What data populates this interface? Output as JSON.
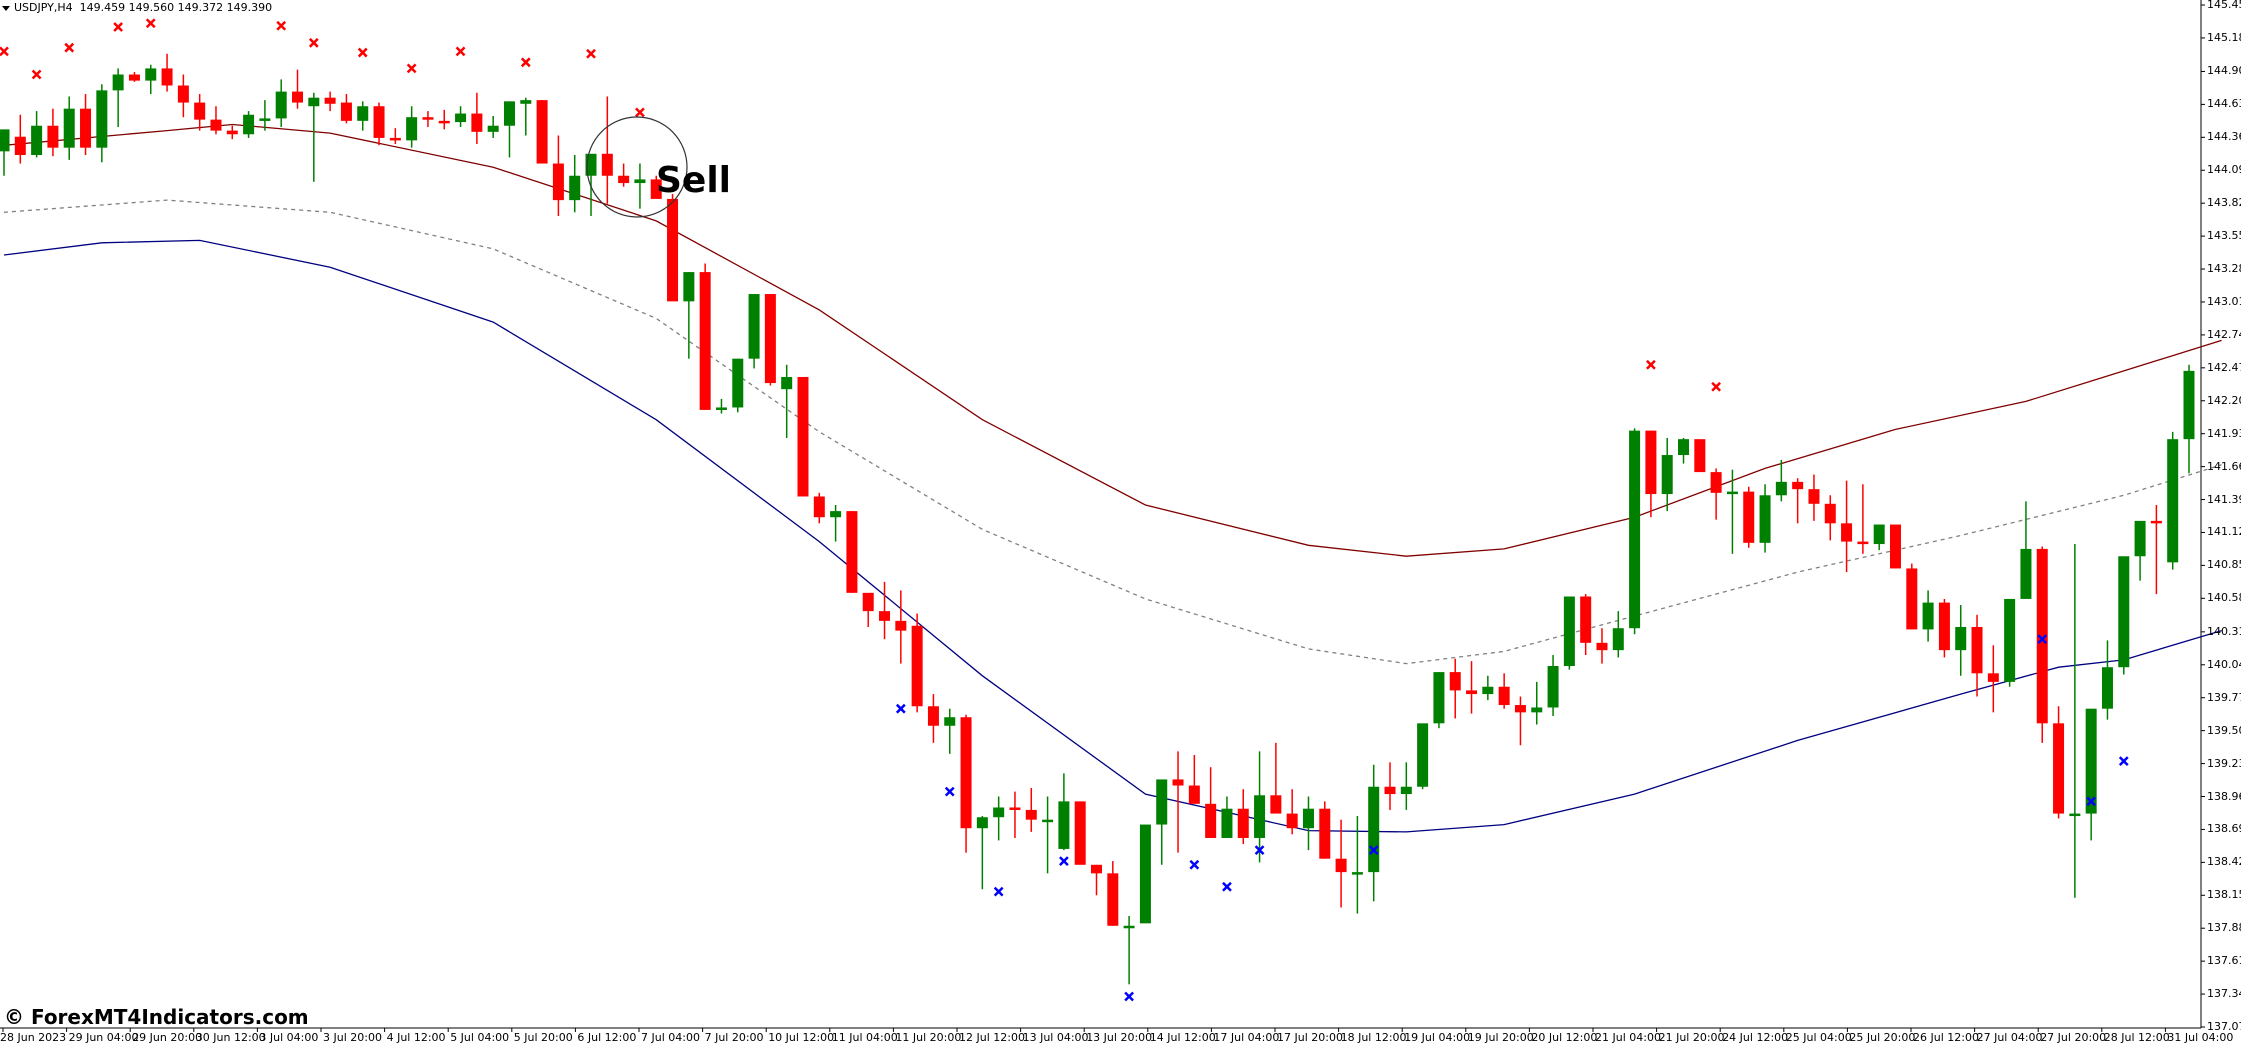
{
  "header": {
    "symbol": "USDJPY,H4",
    "ohlc": "149.459 149.560 149.372 149.390"
  },
  "watermark": "© ForexMT4Indicators.com",
  "annotation": {
    "label": "Sell"
  },
  "colors": {
    "bull": "#008000",
    "bear": "#ff0000",
    "upper_band": "#800000",
    "middle_band": "#808080",
    "lower_band": "#000080",
    "sell_marker": "#ff0000",
    "buy_marker": "#0000ff",
    "axis": "#000000"
  },
  "chart_data": {
    "type": "candlestick",
    "title": "USDJPY,H4",
    "price_axis": {
      "ticks": [
        "145.450",
        "145.180",
        "144.905",
        "144.635",
        "144.365",
        "144.095",
        "143.825",
        "143.555",
        "143.285",
        "143.015",
        "142.745",
        "142.475",
        "142.205",
        "141.935",
        "141.665",
        "141.395",
        "141.125",
        "140.855",
        "140.585",
        "140.310",
        "140.040",
        "139.770",
        "139.500",
        "139.230",
        "138.960",
        "138.690",
        "138.420",
        "138.150",
        "137.880",
        "137.610",
        "137.340",
        "137.070"
      ],
      "range": [
        137.07,
        145.45
      ]
    },
    "time_axis": {
      "ticks": [
        "28 Jun 2023",
        "29 Jun 04:00",
        "29 Jun 20:00",
        "30 Jun 12:00",
        "3 Jul 04:00",
        "3 Jul 20:00",
        "4 Jul 12:00",
        "5 Jul 04:00",
        "5 Jul 20:00",
        "6 Jul 12:00",
        "7 Jul 04:00",
        "7 Jul 20:00",
        "10 Jul 12:00",
        "11 Jul 04:00",
        "11 Jul 20:00",
        "12 Jul 12:00",
        "13 Jul 04:00",
        "13 Jul 20:00",
        "14 Jul 12:00",
        "17 Jul 04:00",
        "17 Jul 20:00",
        "18 Jul 12:00",
        "19 Jul 04:00",
        "19 Jul 20:00",
        "20 Jul 12:00",
        "21 Jul 04:00",
        "21 Jul 20:00",
        "24 Jul 12:00",
        "25 Jul 04:00",
        "25 Jul 20:00",
        "26 Jul 12:00",
        "27 Jul 04:00",
        "27 Jul 20:00",
        "28 Jul 12:00",
        "31 Jul 04:00"
      ]
    },
    "candles_ohlc": [
      [
        144.25,
        144.43,
        144.05,
        144.43
      ],
      [
        144.37,
        144.55,
        144.15,
        144.22
      ],
      [
        144.22,
        144.58,
        144.2,
        144.46
      ],
      [
        144.46,
        144.6,
        144.21,
        144.28
      ],
      [
        144.28,
        144.7,
        144.18,
        144.6
      ],
      [
        144.6,
        144.72,
        144.22,
        144.28
      ],
      [
        144.28,
        144.8,
        144.16,
        144.75
      ],
      [
        144.75,
        144.93,
        144.45,
        144.88
      ],
      [
        144.88,
        144.9,
        144.82,
        144.83
      ],
      [
        144.83,
        144.96,
        144.72,
        144.93
      ],
      [
        144.93,
        145.05,
        144.74,
        144.79
      ],
      [
        144.79,
        144.88,
        144.53,
        144.65
      ],
      [
        144.65,
        144.72,
        144.42,
        144.51
      ],
      [
        144.51,
        144.62,
        144.39,
        144.42
      ],
      [
        144.42,
        144.46,
        144.35,
        144.39
      ],
      [
        144.39,
        144.58,
        144.36,
        144.55
      ],
      [
        144.5,
        144.67,
        144.42,
        144.52
      ],
      [
        144.52,
        144.84,
        144.45,
        144.74
      ],
      [
        144.74,
        144.92,
        144.6,
        144.65
      ],
      [
        144.62,
        144.73,
        144.0,
        144.69
      ],
      [
        144.69,
        144.74,
        144.58,
        144.64
      ],
      [
        144.65,
        144.72,
        144.48,
        144.5
      ],
      [
        144.5,
        144.66,
        144.42,
        144.62
      ],
      [
        144.62,
        144.65,
        144.3,
        144.36
      ],
      [
        144.36,
        144.44,
        144.31,
        144.34
      ],
      [
        144.34,
        144.62,
        144.28,
        144.53
      ],
      [
        144.53,
        144.58,
        144.45,
        144.51
      ],
      [
        144.5,
        144.59,
        144.43,
        144.49
      ],
      [
        144.49,
        144.62,
        144.45,
        144.56
      ],
      [
        144.56,
        144.73,
        144.31,
        144.41
      ],
      [
        144.41,
        144.54,
        144.36,
        144.46
      ],
      [
        144.46,
        144.66,
        144.2,
        144.66
      ],
      [
        144.64,
        144.69,
        144.38,
        144.67
      ],
      [
        144.67,
        144.67,
        144.15,
        144.15
      ],
      [
        144.15,
        144.38,
        143.72,
        143.85
      ],
      [
        143.85,
        144.22,
        143.75,
        144.05
      ],
      [
        144.05,
        144.16,
        143.72,
        144.23
      ],
      [
        144.23,
        144.7,
        143.82,
        144.05
      ],
      [
        144.05,
        144.15,
        143.96,
        143.99
      ],
      [
        143.99,
        144.15,
        143.78,
        144.02
      ],
      [
        144.02,
        144.05,
        143.87,
        143.86
      ],
      [
        143.86,
        143.9,
        143.38,
        143.02
      ],
      [
        143.02,
        143.26,
        142.55,
        143.26
      ],
      [
        143.26,
        143.33,
        142.13,
        142.13
      ],
      [
        142.13,
        142.22,
        142.1,
        142.15
      ],
      [
        142.15,
        142.55,
        142.11,
        142.55
      ],
      [
        142.55,
        143.08,
        142.47,
        143.08
      ],
      [
        143.08,
        143.08,
        142.33,
        142.35
      ],
      [
        142.3,
        142.5,
        141.9,
        142.4
      ],
      [
        142.4,
        142.4,
        141.42,
        141.42
      ],
      [
        141.42,
        141.45,
        141.2,
        141.25
      ],
      [
        141.25,
        141.35,
        141.05,
        141.3
      ],
      [
        141.3,
        141.3,
        140.63,
        140.63
      ],
      [
        140.63,
        140.62,
        140.35,
        140.48
      ],
      [
        140.48,
        140.72,
        140.25,
        140.4
      ],
      [
        140.4,
        140.65,
        140.05,
        140.32
      ],
      [
        140.36,
        140.46,
        139.65,
        139.7
      ],
      [
        139.7,
        139.8,
        139.4,
        139.54
      ],
      [
        139.54,
        139.68,
        139.31,
        139.61
      ],
      [
        139.61,
        139.63,
        138.5,
        138.7
      ],
      [
        138.7,
        138.8,
        138.2,
        138.79
      ],
      [
        138.79,
        138.96,
        138.6,
        138.87
      ],
      [
        138.87,
        139.0,
        138.62,
        138.85
      ],
      [
        138.85,
        139.03,
        138.67,
        138.77
      ],
      [
        138.77,
        138.96,
        138.33,
        138.77
      ],
      [
        138.53,
        139.15,
        138.52,
        138.92
      ],
      [
        138.92,
        138.92,
        138.42,
        138.4
      ],
      [
        138.4,
        138.4,
        138.15,
        138.33
      ],
      [
        138.33,
        138.43,
        137.9,
        137.9
      ],
      [
        137.9,
        137.98,
        137.42,
        137.9
      ],
      [
        137.92,
        138.65,
        137.94,
        138.73
      ],
      [
        138.73,
        139.0,
        138.4,
        139.1
      ],
      [
        139.1,
        139.33,
        138.5,
        139.05
      ],
      [
        139.05,
        139.3,
        138.92,
        138.9
      ],
      [
        138.9,
        139.2,
        138.62,
        138.62
      ],
      [
        138.62,
        138.96,
        138.62,
        138.86
      ],
      [
        138.86,
        139.02,
        138.57,
        138.62
      ],
      [
        138.62,
        139.33,
        138.42,
        138.97
      ],
      [
        138.97,
        139.4,
        138.87,
        138.82
      ],
      [
        138.82,
        139.02,
        138.65,
        138.7
      ],
      [
        138.7,
        138.96,
        138.52,
        138.86
      ],
      [
        138.86,
        138.92,
        138.45,
        138.45
      ],
      [
        138.45,
        138.77,
        138.05,
        138.34
      ],
      [
        138.34,
        138.8,
        138.0,
        138.34
      ],
      [
        138.34,
        139.22,
        138.1,
        139.04
      ],
      [
        139.04,
        139.24,
        138.85,
        138.98
      ],
      [
        138.98,
        139.24,
        138.85,
        139.04
      ],
      [
        139.04,
        139.5,
        139.02,
        139.56
      ],
      [
        139.56,
        139.98,
        139.52,
        139.98
      ],
      [
        139.98,
        140.09,
        139.6,
        139.83
      ],
      [
        139.83,
        140.07,
        139.64,
        139.8
      ],
      [
        139.8,
        139.95,
        139.75,
        139.86
      ],
      [
        139.86,
        139.97,
        139.68,
        139.71
      ],
      [
        139.71,
        139.78,
        139.38,
        139.65
      ],
      [
        139.65,
        139.9,
        139.55,
        139.69
      ],
      [
        139.69,
        140.12,
        139.62,
        140.03
      ],
      [
        140.03,
        140.46,
        140.0,
        140.6
      ],
      [
        140.6,
        140.62,
        140.12,
        140.22
      ],
      [
        140.22,
        140.34,
        140.05,
        140.16
      ],
      [
        140.16,
        140.48,
        140.1,
        140.34
      ],
      [
        140.34,
        141.98,
        140.29,
        141.96
      ],
      [
        141.96,
        141.96,
        141.25,
        141.44
      ],
      [
        141.44,
        141.9,
        141.3,
        141.76
      ],
      [
        141.76,
        141.9,
        141.69,
        141.89
      ],
      [
        141.89,
        141.86,
        141.7,
        141.62
      ],
      [
        141.62,
        141.65,
        141.23,
        141.45
      ],
      [
        141.45,
        141.64,
        140.95,
        141.46
      ],
      [
        141.46,
        141.5,
        141.0,
        141.04
      ],
      [
        141.04,
        141.52,
        140.96,
        141.43
      ],
      [
        141.43,
        141.72,
        141.38,
        141.54
      ],
      [
        141.54,
        141.57,
        141.2,
        141.48
      ],
      [
        141.48,
        141.6,
        141.22,
        141.36
      ],
      [
        141.36,
        141.43,
        141.06,
        141.2
      ],
      [
        141.2,
        141.55,
        140.8,
        141.05
      ],
      [
        141.05,
        141.52,
        140.95,
        141.03
      ],
      [
        141.03,
        141.14,
        140.98,
        141.19
      ],
      [
        141.19,
        141.17,
        140.83,
        140.83
      ],
      [
        140.83,
        140.87,
        140.33,
        140.33
      ],
      [
        140.33,
        140.65,
        140.23,
        140.55
      ],
      [
        140.55,
        140.58,
        140.1,
        140.16
      ],
      [
        140.16,
        140.53,
        139.95,
        140.35
      ],
      [
        140.35,
        140.45,
        139.78,
        139.97
      ],
      [
        139.97,
        140.2,
        139.65,
        139.9
      ],
      [
        139.9,
        140.55,
        139.86,
        140.58
      ],
      [
        140.58,
        141.38,
        140.59,
        140.99
      ],
      [
        140.99,
        141.01,
        139.4,
        139.56
      ],
      [
        139.56,
        139.7,
        138.78,
        138.82
      ],
      [
        138.82,
        141.03,
        138.13,
        138.82
      ],
      [
        138.82,
        139.62,
        138.6,
        139.68
      ],
      [
        139.68,
        140.24,
        139.59,
        140.02
      ],
      [
        140.02,
        140.68,
        139.96,
        140.93
      ],
      [
        140.93,
        140.98,
        140.73,
        141.22
      ],
      [
        141.22,
        141.35,
        140.62,
        141.21
      ],
      [
        140.88,
        141.95,
        140.82,
        141.89
      ],
      [
        141.89,
        142.5,
        141.61,
        142.45
      ]
    ],
    "upper_band": [
      [
        0,
        144.3
      ],
      [
        10,
        144.42
      ],
      [
        14,
        144.47
      ],
      [
        20,
        144.4
      ],
      [
        30,
        144.12
      ],
      [
        40,
        143.68
      ],
      [
        50,
        142.95
      ],
      [
        60,
        142.05
      ],
      [
        70,
        141.35
      ],
      [
        80,
        141.02
      ],
      [
        86,
        140.93
      ],
      [
        92,
        140.99
      ],
      [
        100,
        141.25
      ],
      [
        108,
        141.65
      ],
      [
        116,
        141.97
      ],
      [
        124,
        142.2
      ],
      [
        130,
        142.45
      ],
      [
        136,
        142.7
      ]
    ],
    "middle_band": [
      [
        0,
        143.75
      ],
      [
        5,
        143.8
      ],
      [
        10,
        143.85
      ],
      [
        20,
        143.75
      ],
      [
        30,
        143.45
      ],
      [
        40,
        142.88
      ],
      [
        50,
        141.95
      ],
      [
        60,
        141.15
      ],
      [
        70,
        140.58
      ],
      [
        80,
        140.17
      ],
      [
        86,
        140.05
      ],
      [
        92,
        140.15
      ],
      [
        100,
        140.44
      ],
      [
        110,
        140.8
      ],
      [
        120,
        141.1
      ],
      [
        130,
        141.43
      ],
      [
        136,
        141.68
      ]
    ],
    "lower_band": [
      [
        0,
        143.4
      ],
      [
        6,
        143.5
      ],
      [
        12,
        143.52
      ],
      [
        20,
        143.3
      ],
      [
        30,
        142.85
      ],
      [
        40,
        142.05
      ],
      [
        50,
        141.05
      ],
      [
        60,
        139.95
      ],
      [
        70,
        138.98
      ],
      [
        80,
        138.68
      ],
      [
        86,
        138.67
      ],
      [
        92,
        138.73
      ],
      [
        100,
        138.98
      ],
      [
        110,
        139.42
      ],
      [
        120,
        139.8
      ],
      [
        126,
        140.02
      ],
      [
        130,
        140.08
      ],
      [
        136,
        140.32
      ]
    ],
    "sell_markers": [
      [
        0,
        145.07
      ],
      [
        2,
        144.88
      ],
      [
        4,
        145.1
      ],
      [
        7,
        145.27
      ],
      [
        9,
        145.3
      ],
      [
        17,
        145.28
      ],
      [
        19,
        145.14
      ],
      [
        22,
        145.06
      ],
      [
        25,
        144.93
      ],
      [
        28,
        145.07
      ],
      [
        32,
        144.98
      ],
      [
        36,
        145.05
      ],
      [
        39,
        144.57
      ],
      [
        101,
        142.5
      ],
      [
        105,
        142.32
      ]
    ],
    "buy_markers": [
      [
        55,
        139.68
      ],
      [
        58,
        139.0
      ],
      [
        61,
        138.18
      ],
      [
        65,
        138.43
      ],
      [
        69,
        137.32
      ],
      [
        73,
        138.4
      ],
      [
        75,
        138.22
      ],
      [
        77,
        138.52
      ],
      [
        84,
        138.52
      ],
      [
        125,
        140.25
      ],
      [
        128,
        138.92
      ],
      [
        130,
        139.25
      ]
    ],
    "annotation": {
      "text": "Sell",
      "circle_center_index": 39.5,
      "circle_center_price": 144.15,
      "circle_radius_px": 50
    }
  }
}
